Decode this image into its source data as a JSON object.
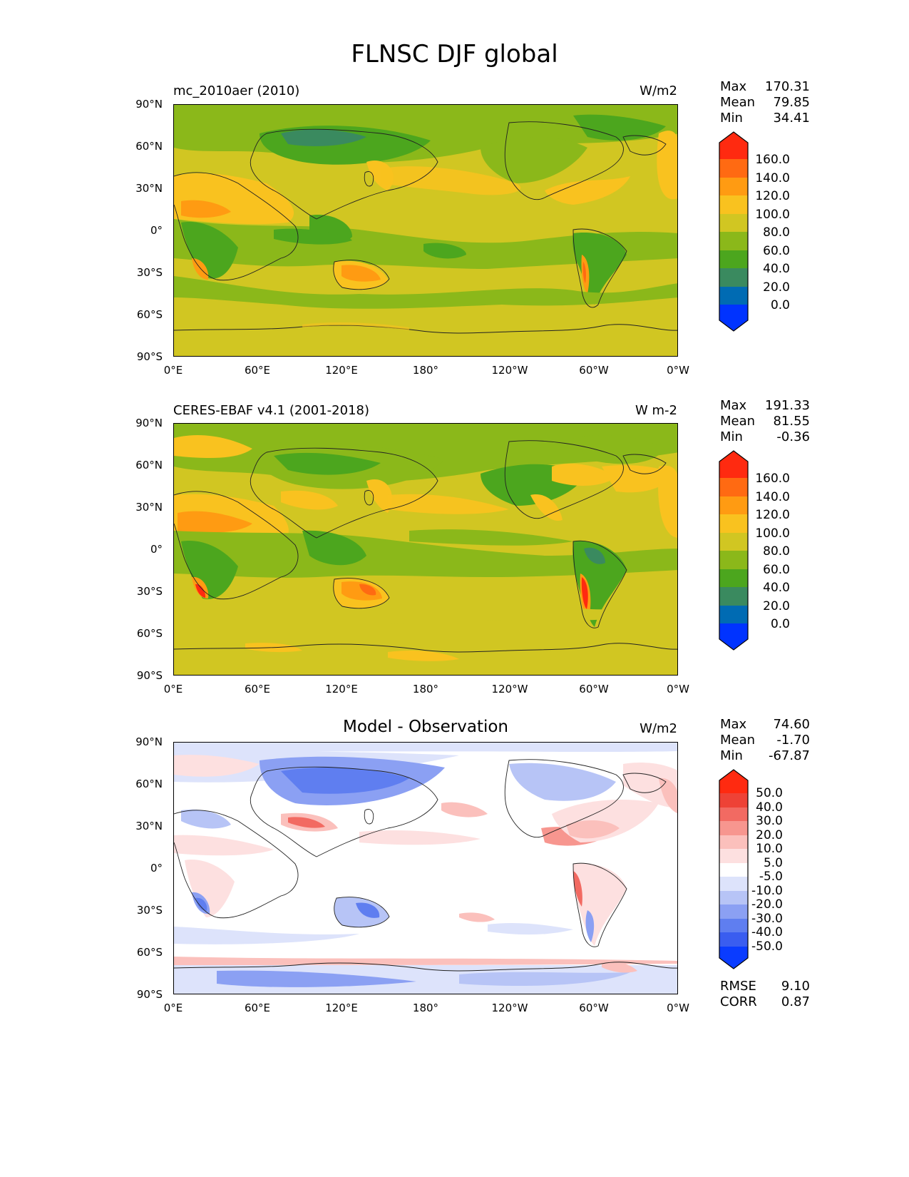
{
  "title": "FLNSC DJF global",
  "colors": {
    "levels_cmap": [
      "#0033ff",
      "#006bb3",
      "#3a8a5f",
      "#4ca61e",
      "#8bb81a",
      "#d1c622",
      "#f9c21f",
      "#ff9b12",
      "#ff6a12",
      "#ff2a10"
    ],
    "diff_cmap": [
      "#0a3cff",
      "#3a5df0",
      "#5f7ef0",
      "#8ba0f3",
      "#b7c4f6",
      "#dde3fb",
      "#ffffff",
      "#fde0e0",
      "#fbc0bc",
      "#f7968f",
      "#f26a62",
      "#ee4236",
      "#ff2a10"
    ]
  },
  "panels": [
    {
      "label": "mc_2010aer (2010)",
      "units": "W/m2",
      "stats": [
        {
          "name": "Max",
          "value": "170.31"
        },
        {
          "name": "Mean",
          "value": "79.85"
        },
        {
          "name": "Min",
          "value": "34.41"
        }
      ],
      "colorbar_labels": [
        "160.0",
        "140.0",
        "120.0",
        "100.0",
        "80.0",
        "60.0",
        "40.0",
        "20.0",
        "0.0"
      ]
    },
    {
      "label": "CERES-EBAF v4.1 (2001-2018)",
      "units": "W m-2",
      "stats": [
        {
          "name": "Max",
          "value": "191.33"
        },
        {
          "name": "Mean",
          "value": "81.55"
        },
        {
          "name": "Min",
          "value": "-0.36"
        }
      ],
      "colorbar_labels": [
        "160.0",
        "140.0",
        "120.0",
        "100.0",
        "80.0",
        "60.0",
        "40.0",
        "20.0",
        "0.0"
      ]
    },
    {
      "label": "Model - Observation",
      "units": "W/m2",
      "stats": [
        {
          "name": "Max",
          "value": "74.60"
        },
        {
          "name": "Mean",
          "value": "-1.70"
        },
        {
          "name": "Min",
          "value": "-67.87"
        }
      ],
      "colorbar_labels": [
        "50.0",
        "40.0",
        "30.0",
        "20.0",
        "10.0",
        "5.0",
        "-5.0",
        "-10.0",
        "-20.0",
        "-30.0",
        "-40.0",
        "-50.0"
      ],
      "metrics": [
        {
          "name": "RMSE",
          "value": "9.10"
        },
        {
          "name": "CORR",
          "value": "0.87"
        }
      ]
    }
  ],
  "lat_ticks": [
    "90°N",
    "60°N",
    "30°N",
    "0°",
    "30°S",
    "60°S",
    "90°S"
  ],
  "lon_ticks": [
    "0°E",
    "60°E",
    "120°E",
    "180°",
    "120°W",
    "60°W",
    "0°W"
  ]
}
